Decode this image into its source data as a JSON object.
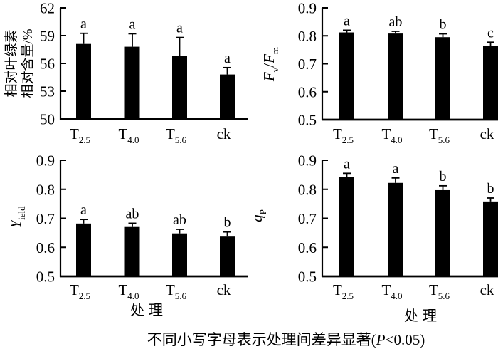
{
  "figure": {
    "background": "#ffffff",
    "ink": "#000000",
    "caption": {
      "prefix": "不同小写字母表示处理间差异显著(",
      "italic_var": "P",
      "suffix": "<0.05)"
    }
  },
  "categories": [
    {
      "main": "T",
      "sub": "2.5"
    },
    {
      "main": "T",
      "sub": "4.0"
    },
    {
      "main": "T",
      "sub": "5.6"
    },
    {
      "main": "ck",
      "sub": ""
    }
  ],
  "chart_data": [
    {
      "type": "bar",
      "panel": "top-left",
      "title": "",
      "ylabel_text": "相对叶绿素相对含量/%",
      "ylabel_lines": [
        "相对叶绿素",
        "相对含量/%"
      ],
      "xlabel": "",
      "categories": [
        "T2.5",
        "T4.0",
        "T5.6",
        "ck"
      ],
      "values": [
        58.1,
        57.8,
        56.8,
        54.8
      ],
      "errors_upper": [
        1.15,
        1.4,
        2.0,
        0.75
      ],
      "sig_letters": [
        "a",
        "a",
        "a",
        "a"
      ],
      "ylim": [
        50,
        62
      ],
      "yticks": [
        50,
        53,
        56,
        59,
        62
      ],
      "ytick_format": "int",
      "grid": false,
      "legend": null
    },
    {
      "type": "bar",
      "panel": "top-right",
      "title": "",
      "ylabel_text": "Fv/Fm",
      "ylabel_segments": [
        {
          "t": "F",
          "s": "i"
        },
        {
          "t": "v",
          "s": "sub"
        },
        {
          "t": "/",
          "s": ""
        },
        {
          "t": "F",
          "s": "i"
        },
        {
          "t": "m",
          "s": "sub"
        }
      ],
      "xlabel": "",
      "categories": [
        "T2.5",
        "T4.0",
        "T5.6",
        "ck"
      ],
      "values": [
        0.812,
        0.808,
        0.795,
        0.765
      ],
      "errors_upper": [
        0.008,
        0.008,
        0.012,
        0.012
      ],
      "sig_letters": [
        "a",
        "ab",
        "b",
        "c"
      ],
      "ylim": [
        0.5,
        0.9
      ],
      "yticks": [
        0.5,
        0.6,
        0.7,
        0.8,
        0.9
      ],
      "ytick_format": "1dp",
      "grid": false,
      "legend": null
    },
    {
      "type": "bar",
      "panel": "bottom-left",
      "title": "",
      "ylabel_text": "Yield",
      "ylabel_segments": [
        {
          "t": "Y",
          "s": "i"
        },
        {
          "t": "ield",
          "s": "sub"
        }
      ],
      "xlabel": "处理",
      "categories": [
        "T2.5",
        "T4.0",
        "T5.6",
        "ck"
      ],
      "values": [
        0.682,
        0.67,
        0.648,
        0.637
      ],
      "errors_upper": [
        0.014,
        0.013,
        0.014,
        0.016
      ],
      "sig_letters": [
        "a",
        "ab",
        "ab",
        "b"
      ],
      "ylim": [
        0.5,
        0.9
      ],
      "yticks": [
        0.5,
        0.6,
        0.7,
        0.8,
        0.9
      ],
      "ytick_format": "1dp",
      "grid": false,
      "legend": null
    },
    {
      "type": "bar",
      "panel": "bottom-right",
      "title": "",
      "ylabel_text": "qP",
      "ylabel_segments": [
        {
          "t": "q",
          "s": "i"
        },
        {
          "t": "P",
          "s": "sub"
        }
      ],
      "xlabel": "处理",
      "categories": [
        "T2.5",
        "T4.0",
        "T5.6",
        "ck"
      ],
      "values": [
        0.842,
        0.822,
        0.797,
        0.758
      ],
      "errors_upper": [
        0.013,
        0.017,
        0.015,
        0.012
      ],
      "sig_letters": [
        "a",
        "a",
        "b",
        "b"
      ],
      "ylim": [
        0.5,
        0.9
      ],
      "yticks": [
        0.5,
        0.6,
        0.7,
        0.8,
        0.9
      ],
      "ytick_format": "1dp",
      "grid": false,
      "legend": null
    }
  ]
}
